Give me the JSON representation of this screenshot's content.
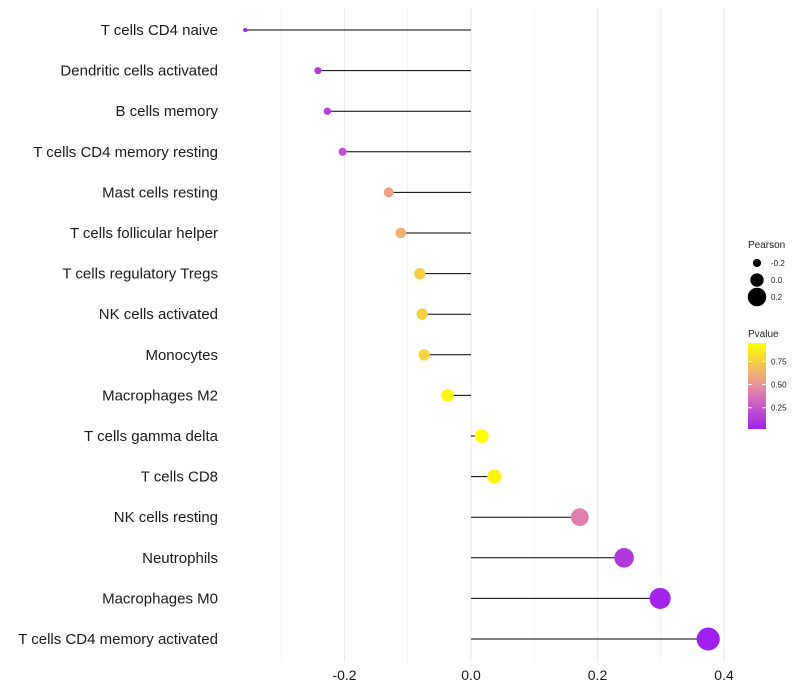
{
  "chart_data": {
    "type": "lollipop",
    "categories": [
      "T cells CD4 naive",
      "Dendritic cells activated",
      "B cells memory",
      "T cells CD4 memory resting",
      "Mast cells resting",
      "T cells follicular helper",
      "T cells regulatory  Tregs ",
      "NK cells activated",
      "Monocytes",
      "Macrophages M2",
      "T cells gamma delta",
      "T cells CD8",
      "NK cells resting",
      "Neutrophils",
      "Macrophages M0",
      "T cells CD4 memory activated"
    ],
    "pearson": [
      -0.357,
      -0.242,
      -0.227,
      -0.203,
      -0.13,
      -0.111,
      -0.081,
      -0.077,
      -0.074,
      -0.037,
      0.017,
      0.037,
      0.172,
      0.242,
      0.299,
      0.375
    ],
    "pvalue": [
      0.02,
      0.13,
      0.16,
      0.22,
      0.55,
      0.62,
      0.75,
      0.76,
      0.77,
      0.9,
      0.95,
      0.9,
      0.42,
      0.13,
      0.04,
      0.02
    ],
    "xlim": [
      -0.4,
      0.44
    ],
    "x_ticks": [
      -0.2,
      0.0,
      0.2,
      0.4
    ],
    "x_tick_labels": [
      "-0.2",
      "0.0",
      "0.2",
      "0.4"
    ],
    "grid": true,
    "legend": {
      "size": {
        "title": "Pearson",
        "values": [
          -0.2,
          0.0,
          0.2
        ],
        "labels": [
          "-0.2",
          "0.0",
          "0.2"
        ]
      },
      "color": {
        "title": "Pvalue",
        "ticks": [
          0.25,
          0.5,
          0.75
        ],
        "tick_labels": [
          "0.25",
          "0.50",
          "0.75"
        ],
        "range": [
          0.02,
          0.95
        ],
        "low_color": "#a020f0",
        "mid_color": "#e890a0",
        "high_color": "#ffff00"
      },
      "position": "right"
    }
  },
  "colors": {
    "stem": "#000000",
    "grid": "#ebebeb",
    "background": "#ffffff"
  }
}
